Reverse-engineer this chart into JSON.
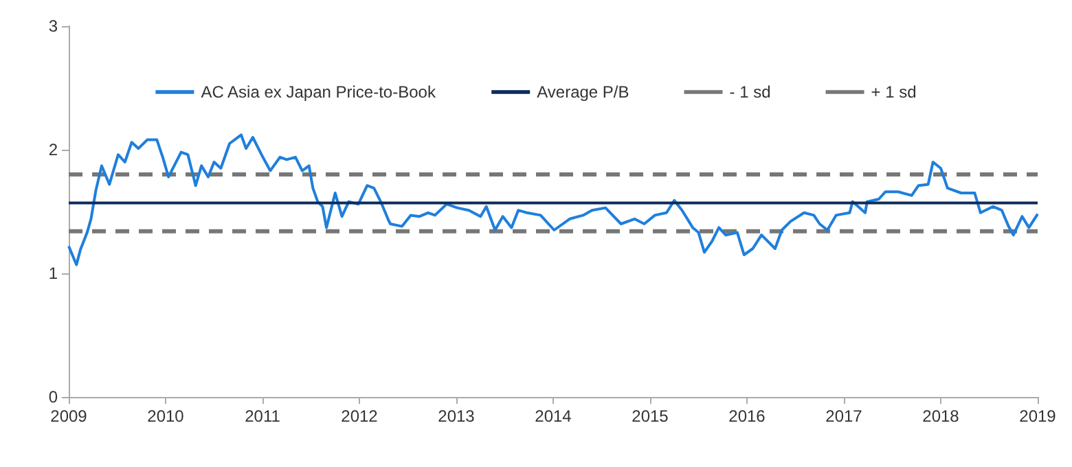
{
  "chart_data": {
    "type": "line",
    "xlim": [
      2009,
      2019
    ],
    "xticks": [
      2009,
      2010,
      2011,
      2012,
      2013,
      2014,
      2015,
      2016,
      2017,
      2018,
      2019
    ],
    "ylim": [
      0,
      3
    ],
    "yticks": [
      0,
      1,
      2,
      3
    ],
    "grid": false,
    "legend": "top",
    "marker": "none",
    "series": [
      {
        "name": "AC Asia ex Japan Price-to-Book",
        "color": "#1f7fdc",
        "line_style": "solid",
        "x": [
          2009.0,
          2009.08,
          2009.12,
          2009.19,
          2009.23,
          2009.28,
          2009.34,
          2009.42,
          2009.51,
          2009.58,
          2009.65,
          2009.72,
          2009.81,
          2009.91,
          2009.97,
          2010.03,
          2010.16,
          2010.23,
          2010.31,
          2010.37,
          2010.44,
          2010.5,
          2010.57,
          2010.66,
          2010.78,
          2010.83,
          2010.9,
          2010.99,
          2011.08,
          2011.18,
          2011.25,
          2011.34,
          2011.41,
          2011.48,
          2011.52,
          2011.57,
          2011.62,
          2011.66,
          2011.75,
          2011.82,
          2011.89,
          2011.99,
          2012.08,
          2012.15,
          2012.22,
          2012.3,
          2012.32,
          2012.44,
          2012.53,
          2012.62,
          2012.71,
          2012.78,
          2012.9,
          2013.01,
          2013.13,
          2013.25,
          2013.31,
          2013.4,
          2013.48,
          2013.57,
          2013.64,
          2013.73,
          2013.87,
          2014.01,
          2014.17,
          2014.31,
          2014.4,
          2014.54,
          2014.7,
          2014.84,
          2014.94,
          2015.05,
          2015.17,
          2015.25,
          2015.33,
          2015.44,
          2015.5,
          2015.56,
          2015.64,
          2015.71,
          2015.78,
          2015.9,
          2015.97,
          2016.06,
          2016.15,
          2016.29,
          2016.36,
          2016.45,
          2016.59,
          2016.69,
          2016.75,
          2016.83,
          2016.92,
          2017.06,
          2017.09,
          2017.22,
          2017.24,
          2017.36,
          2017.43,
          2017.56,
          2017.7,
          2017.77,
          2017.87,
          2017.92,
          2018.0,
          2018.07,
          2018.21,
          2018.35,
          2018.41,
          2018.54,
          2018.63,
          2018.7,
          2018.75,
          2018.84,
          2018.91,
          2019.0
        ],
        "values": [
          1.22,
          1.07,
          1.19,
          1.33,
          1.44,
          1.67,
          1.87,
          1.72,
          1.96,
          1.9,
          2.06,
          2.01,
          2.08,
          2.08,
          1.94,
          1.78,
          1.98,
          1.96,
          1.71,
          1.87,
          1.78,
          1.9,
          1.85,
          2.05,
          2.12,
          2.01,
          2.1,
          1.96,
          1.83,
          1.94,
          1.92,
          1.94,
          1.83,
          1.87,
          1.69,
          1.58,
          1.54,
          1.37,
          1.65,
          1.46,
          1.58,
          1.56,
          1.71,
          1.69,
          1.58,
          1.43,
          1.4,
          1.38,
          1.47,
          1.46,
          1.49,
          1.47,
          1.56,
          1.53,
          1.51,
          1.46,
          1.54,
          1.35,
          1.46,
          1.37,
          1.51,
          1.49,
          1.47,
          1.35,
          1.44,
          1.47,
          1.51,
          1.53,
          1.4,
          1.44,
          1.4,
          1.47,
          1.49,
          1.59,
          1.51,
          1.37,
          1.33,
          1.17,
          1.26,
          1.37,
          1.31,
          1.33,
          1.15,
          1.2,
          1.31,
          1.2,
          1.35,
          1.42,
          1.49,
          1.47,
          1.4,
          1.35,
          1.47,
          1.49,
          1.58,
          1.49,
          1.58,
          1.6,
          1.66,
          1.66,
          1.63,
          1.71,
          1.72,
          1.9,
          1.85,
          1.69,
          1.65,
          1.65,
          1.49,
          1.54,
          1.51,
          1.38,
          1.31,
          1.46,
          1.37,
          1.48
        ]
      },
      {
        "name": "Average P/B",
        "color": "#0d2b5a",
        "line_style": "solid",
        "x": [
          2009,
          2019
        ],
        "values": [
          1.57,
          1.57
        ]
      },
      {
        "name": "- 1 sd",
        "color": "#777777",
        "line_style": "dashed",
        "x": [
          2009,
          2019
        ],
        "values": [
          1.34,
          1.34
        ]
      },
      {
        "name": "+ 1 sd",
        "color": "#777777",
        "line_style": "dashed",
        "x": [
          2009,
          2019
        ],
        "values": [
          1.8,
          1.8
        ]
      }
    ]
  }
}
